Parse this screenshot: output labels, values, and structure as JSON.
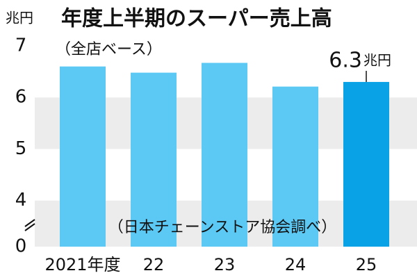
{
  "chart_data": {
    "type": "bar",
    "title": "年度上半期のスーパー売上高",
    "subtitle": "（全店ベース）",
    "y_label": "兆円",
    "source": "（日本チェーンストア協会調べ）",
    "categories": [
      "2021年度",
      "22",
      "23",
      "24",
      "25"
    ],
    "values": [
      6.6,
      6.48,
      6.67,
      6.21,
      6.3
    ],
    "value_labels": [
      null,
      null,
      null,
      null,
      "6.3"
    ],
    "colors": [
      "#5cc8f4",
      "#5cc8f4",
      "#5cc8f4",
      "#5cc8f4",
      "#0aa2e6"
    ],
    "ylim": [
      0,
      7
    ],
    "axis_break": [
      0,
      3.55
    ],
    "yticks": [
      0,
      4,
      5,
      6,
      7
    ],
    "grid": "bands"
  }
}
